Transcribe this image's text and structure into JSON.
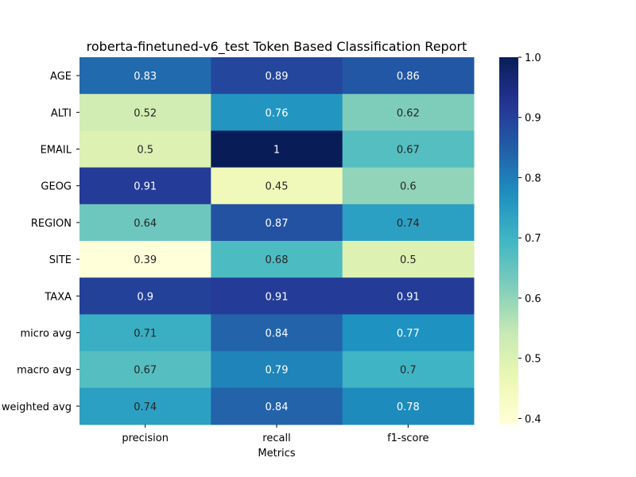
{
  "chart_data": {
    "type": "heatmap",
    "title": "roberta-finetuned-v6_test Token Based Classification Report",
    "xlabel": "Metrics",
    "ylabel": "",
    "categories_x": [
      "precision",
      "recall",
      "f1-score"
    ],
    "categories_y": [
      "AGE",
      "ALTI",
      "EMAIL",
      "GEOG",
      "REGION",
      "SITE",
      "TAXA",
      "micro avg",
      "macro avg",
      "weighted avg"
    ],
    "values": [
      [
        0.83,
        0.89,
        0.86
      ],
      [
        0.52,
        0.76,
        0.62
      ],
      [
        0.5,
        1,
        0.67
      ],
      [
        0.91,
        0.45,
        0.6
      ],
      [
        0.64,
        0.87,
        0.74
      ],
      [
        0.39,
        0.68,
        0.5
      ],
      [
        0.9,
        0.91,
        0.91
      ],
      [
        0.71,
        0.84,
        0.77
      ],
      [
        0.67,
        0.79,
        0.7
      ],
      [
        0.74,
        0.84,
        0.78
      ]
    ],
    "colorscale": "YlGnBu",
    "colorbar_range": [
      0.39,
      1.0
    ],
    "colorbar_ticks": [
      0.4,
      0.5,
      0.6,
      0.7,
      0.8,
      0.9,
      1.0
    ],
    "annotations": true,
    "grid": false
  }
}
